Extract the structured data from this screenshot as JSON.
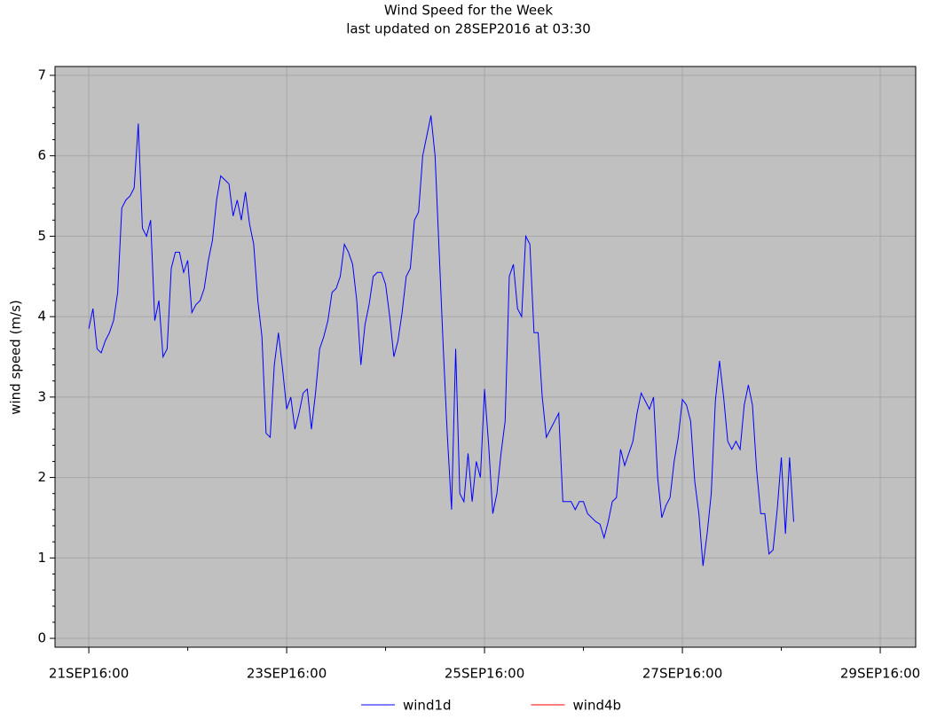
{
  "chart_data": {
    "type": "line",
    "title": "Wind Speed for the Week",
    "subtitle": "last updated on 28SEP2016 at 03:30",
    "y_label": "wind speed (m/s)",
    "x": [
      0,
      1,
      2,
      3,
      4,
      5,
      6,
      7,
      8,
      9,
      10,
      11,
      12,
      13,
      14,
      15,
      16,
      17,
      18,
      19,
      20,
      21,
      22,
      23,
      24,
      25,
      26,
      27,
      28,
      29,
      30,
      31,
      32,
      33,
      34,
      35,
      36,
      37,
      38,
      39,
      40,
      41,
      42,
      43,
      44,
      45,
      46,
      47,
      48,
      49,
      50,
      51,
      52,
      53,
      54,
      55,
      56,
      57,
      58,
      59,
      60,
      61,
      62,
      63,
      64,
      65,
      66,
      67,
      68,
      69,
      70,
      71,
      72,
      73,
      74,
      75,
      76,
      77,
      78,
      79,
      80,
      81,
      82,
      83,
      84,
      85,
      86,
      87,
      88,
      89,
      90,
      91,
      92,
      93,
      94,
      95,
      96,
      97,
      98,
      99,
      100,
      101,
      102,
      103,
      104,
      105,
      106,
      107,
      108,
      109,
      110,
      111,
      112,
      113,
      114,
      115,
      116,
      117,
      118,
      119,
      120,
      121,
      122,
      123,
      124,
      125,
      126,
      127,
      128,
      129,
      130,
      131,
      132,
      133,
      134,
      135,
      136,
      137,
      138,
      139,
      140,
      141,
      142,
      143,
      144,
      145,
      146,
      147,
      148,
      149,
      150,
      151,
      152,
      153,
      154,
      155,
      156,
      157,
      158,
      159,
      160,
      161,
      162,
      163,
      164,
      165,
      166,
      167,
      168,
      169,
      170,
      171
    ],
    "series": [
      {
        "name": "wind1d",
        "color": "#0000ff",
        "values": [
          3.85,
          4.1,
          3.6,
          3.55,
          3.7,
          3.8,
          3.95,
          4.3,
          5.35,
          5.45,
          5.5,
          5.6,
          6.4,
          5.1,
          5.0,
          5.2,
          3.95,
          4.2,
          3.5,
          3.6,
          4.6,
          4.8,
          4.8,
          4.55,
          4.7,
          4.05,
          4.15,
          4.2,
          4.35,
          4.7,
          4.95,
          5.45,
          5.75,
          5.7,
          5.65,
          5.25,
          5.45,
          5.2,
          5.55,
          5.15,
          4.9,
          4.2,
          3.75,
          2.55,
          2.5,
          3.4,
          3.8,
          3.35,
          2.85,
          3.0,
          2.6,
          2.8,
          3.05,
          3.1,
          2.6,
          3.05,
          3.6,
          3.75,
          3.95,
          4.3,
          4.35,
          4.5,
          4.9,
          4.8,
          4.65,
          4.2,
          3.4,
          3.9,
          4.15,
          4.5,
          4.55,
          4.55,
          4.4,
          4.0,
          3.5,
          3.7,
          4.05,
          4.5,
          4.6,
          5.2,
          5.3,
          6.0,
          6.25,
          6.5,
          6.0,
          4.8,
          3.6,
          2.5,
          1.6,
          3.6,
          1.8,
          1.7,
          2.3,
          1.7,
          2.2,
          2.0,
          3.1,
          2.4,
          1.55,
          1.8,
          2.3,
          2.7,
          4.5,
          4.65,
          4.1,
          4.0,
          5.0,
          4.9,
          3.8,
          3.8,
          3.0,
          2.5,
          2.6,
          2.7,
          2.8,
          1.7,
          1.7,
          1.7,
          1.6,
          1.7,
          1.7,
          1.55,
          1.5,
          1.45,
          1.42,
          1.25,
          1.45,
          1.7,
          1.75,
          2.35,
          2.15,
          2.3,
          2.45,
          2.8,
          3.05,
          2.95,
          2.85,
          3.0,
          2.0,
          1.5,
          1.65,
          1.75,
          2.2,
          2.5,
          2.97,
          2.9,
          2.7,
          1.95,
          1.55,
          0.9,
          1.3,
          1.8,
          2.95,
          3.45,
          3.0,
          2.45,
          2.35,
          2.45,
          2.35,
          2.9,
          3.15,
          2.9,
          2.1,
          1.55,
          1.55,
          1.05,
          1.1,
          1.6,
          2.25,
          1.3,
          2.25,
          1.45
        ]
      },
      {
        "name": "wind4b",
        "color": "#ff0000",
        "values": [
          null,
          null,
          null,
          null,
          null,
          null,
          null,
          null,
          null,
          null,
          null,
          null,
          null,
          null,
          null,
          null,
          null,
          null,
          null,
          null,
          null,
          null,
          null,
          null,
          null,
          null,
          null,
          null,
          null,
          null,
          null,
          null,
          null,
          null,
          null,
          null,
          null,
          null,
          null,
          null,
          null,
          null,
          null,
          null,
          null,
          null,
          null,
          null,
          null,
          null,
          null,
          null,
          null,
          null,
          null,
          null,
          null,
          null,
          null,
          null,
          null,
          null,
          null,
          null,
          null,
          null,
          null,
          null,
          null,
          null,
          null,
          null,
          null,
          null,
          null,
          null,
          null,
          null,
          null,
          null,
          null,
          null,
          null,
          null,
          null,
          null,
          null,
          null,
          null,
          null,
          null,
          null,
          null,
          null,
          null,
          null,
          null,
          null,
          null,
          null,
          null,
          null,
          null,
          null,
          null,
          null,
          null,
          null,
          null,
          null,
          null,
          null,
          null,
          null,
          null,
          null,
          null,
          null,
          null,
          null,
          null,
          null,
          null,
          null,
          null,
          null,
          null,
          null,
          null,
          null,
          null,
          null,
          null,
          null,
          null,
          null,
          null,
          null,
          null,
          null,
          null,
          null,
          null,
          null,
          null,
          null,
          null,
          null,
          null,
          null,
          null,
          null,
          null,
          null,
          null,
          null,
          null,
          null,
          null,
          null,
          null,
          null,
          null,
          null,
          null,
          null,
          null,
          null,
          null,
          null,
          null,
          null
        ]
      }
    ],
    "xlim": [
      -8.2,
      200.6
    ],
    "xticks": [
      {
        "value": 0,
        "label": "21SEP16:00"
      },
      {
        "value": 48,
        "label": "23SEP16:00"
      },
      {
        "value": 96,
        "label": "25SEP16:00"
      },
      {
        "value": 144,
        "label": "27SEP16:00"
      },
      {
        "value": 192,
        "label": "29SEP16:00"
      }
    ],
    "xminorticks": [
      24,
      72,
      120,
      168
    ],
    "ylim": [
      -0.11,
      7.11
    ],
    "yticks": [
      0,
      1,
      2,
      3,
      4,
      5,
      6,
      7
    ],
    "yminorticks": [
      0.2,
      0.4,
      0.6,
      0.8,
      1.2,
      1.4,
      1.6,
      1.8,
      2.2,
      2.4,
      2.6,
      2.8,
      3.2,
      3.4,
      3.6,
      3.8,
      4.2,
      4.4,
      4.6,
      4.8,
      5.2,
      5.4,
      5.6,
      5.8,
      6.2,
      6.4,
      6.6,
      6.8
    ],
    "grid": true,
    "legend": "bottom"
  }
}
